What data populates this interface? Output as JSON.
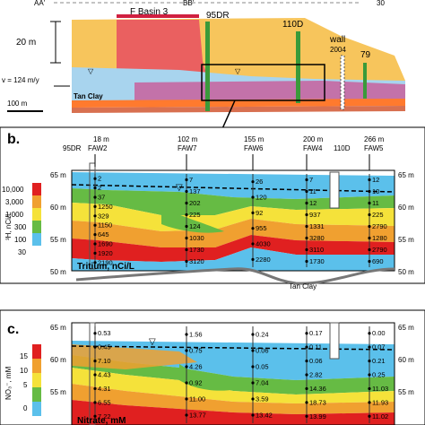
{
  "panel_a": {
    "top_labels": [
      "AA'",
      "BB'",
      "30"
    ],
    "basin_label": "F Basin 3",
    "well_95": "95DR",
    "well_110": "110D",
    "wall_label": "wall",
    "wall_year": "2004",
    "well_79": "79",
    "height_label": "20 m",
    "velocity_label": "v = 124 m/y",
    "clay_label": "Tan Clay",
    "scale_label": "100 m"
  },
  "panel_b": {
    "panel_label": "b.",
    "headers": [
      {
        "well": "95DR",
        "dist": "18 m",
        "name": "FAW2"
      },
      {
        "dist": "102 m",
        "name": "FAW7"
      },
      {
        "dist": "155 m",
        "name": "FAW6"
      },
      {
        "dist": "200 m",
        "name": "FAW4"
      },
      {
        "well": "110D",
        "dist": "266 m",
        "name": "FAW5"
      }
    ],
    "y_ticks": [
      "65 m",
      "60 m",
      "55 m",
      "50 m"
    ],
    "legend_ticks": [
      "10,000",
      "3,000",
      "1,000",
      "300",
      "100",
      "30"
    ],
    "legend_unit": "³H, nCi/L",
    "inset_title": "Tritium, nCi/L",
    "clay_label": "Tan Clay",
    "profiles": {
      "FAW2": [
        "2",
        "2",
        "37",
        "1250",
        "329",
        "1150",
        "645",
        "1690",
        "1920",
        "2190"
      ],
      "FAW7": [
        "7",
        "137",
        "202",
        "225",
        "124",
        "1030",
        "1730",
        "3120"
      ],
      "FAW6": [
        "26",
        "120",
        "92",
        "955",
        "4030",
        "2280"
      ],
      "FAW4": [
        "7",
        "11",
        "12",
        "937",
        "1331",
        "3280",
        "3110",
        "1730"
      ],
      "FAW5": [
        "12",
        "10",
        "11",
        "225",
        "2790",
        "1280",
        "2790",
        "690"
      ]
    }
  },
  "panel_c": {
    "panel_label": "c.",
    "y_ticks": [
      "65 m",
      "60 m",
      "55 m",
      "50 m"
    ],
    "legend_ticks": [
      "15",
      "10",
      "5",
      "0"
    ],
    "legend_unit": "NO₃⁻, mM",
    "inset_title": "Nitrate, mM",
    "profiles": {
      "FAW2": [
        "0.53",
        "0.45",
        "7.10",
        "4.43",
        "4.31",
        "6.55",
        "7.22"
      ],
      "FAW7": [
        "1.56",
        "0.75",
        "4.26",
        "0.92",
        "11.00",
        "13.77"
      ],
      "FAW6": [
        "0.24",
        "0.06",
        "0.05",
        "7.04",
        "3.59",
        "13.42"
      ],
      "FAW4": [
        "0.17",
        "0.11",
        "0.06",
        "2.82",
        "14.36",
        "18.73",
        "13.99"
      ],
      "FAW5": [
        "0.00",
        "0.07",
        "0.21",
        "0.25",
        "11.03",
        "11.93",
        "11.02"
      ]
    }
  },
  "colors": {
    "blue": "#5bc0eb",
    "green": "#66bb44",
    "yellow": "#f5e23a",
    "orange": "#f0a030",
    "red": "#e02020",
    "magenta": "#c0508c",
    "clay": "#ff7a2e",
    "sky": "#8fc8ee"
  }
}
